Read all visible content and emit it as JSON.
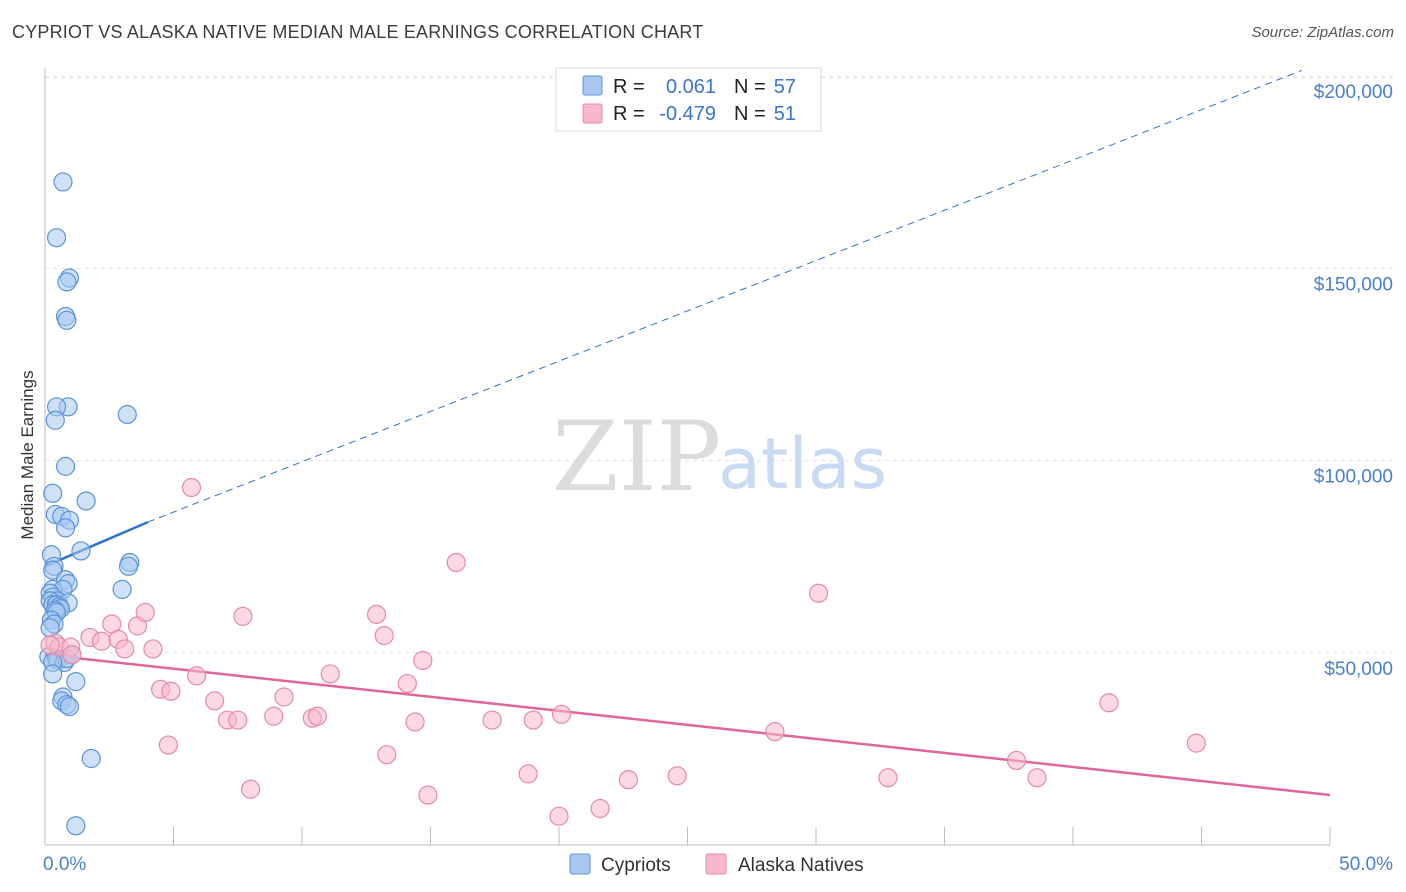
{
  "header": {
    "title": "CYPRIOT VS ALASKA NATIVE MEDIAN MALE EARNINGS CORRELATION CHART",
    "source": "Source: ZipAtlas.com"
  },
  "watermark": {
    "zip": "ZIP",
    "atlas": "atlas"
  },
  "colors": {
    "blue_fill": "#a8c8f0",
    "blue_stroke": "#5b93d8",
    "blue_line": "#2f72d0",
    "pink_fill": "#f7b8cc",
    "pink_stroke": "#e48aa8",
    "pink_line": "#e0669a",
    "grid": "#e3e3e3",
    "axis_text": "#4a7fd0"
  },
  "legend": {
    "rows": [
      {
        "r_label": "R =",
        "r_value": "0.061",
        "n_label": "N =",
        "n_value": "57"
      },
      {
        "r_label": "R =",
        "r_value": "-0.479",
        "n_label": "N =",
        "n_value": "51"
      }
    ]
  },
  "chart_data": {
    "type": "scatter",
    "title": "CYPRIOT VS ALASKA NATIVE MEDIAN MALE EARNINGS CORRELATION CHART",
    "xlabel": "",
    "ylabel": "Median Male Earnings",
    "xlim": [
      0,
      50
    ],
    "ylim": [
      0,
      205000
    ],
    "x_tick_labels": [
      "0.0%",
      "50.0%"
    ],
    "y_ticks": [
      {
        "value": 50000,
        "label": "$50,000"
      },
      {
        "value": 100000,
        "label": "$100,000"
      },
      {
        "value": 150000,
        "label": "$150,000"
      },
      {
        "value": 200000,
        "label": "$200,000"
      }
    ],
    "grid": true,
    "legend_position": "top-center",
    "series": [
      {
        "name": "Cypriots",
        "R": 0.061,
        "N": 57,
        "trend": {
          "x": [
            0,
            4
          ],
          "y": [
            72500,
            84000
          ],
          "dashed_extension_to": [
            48.9,
            201500
          ]
        },
        "points": [
          [
            0.7,
            172500
          ],
          [
            0.45,
            158000
          ],
          [
            0.95,
            147500
          ],
          [
            0.85,
            146500
          ],
          [
            0.8,
            137500
          ],
          [
            0.85,
            136500
          ],
          [
            0.9,
            114000
          ],
          [
            0.45,
            114000
          ],
          [
            0.4,
            110500
          ],
          [
            3.2,
            112000
          ],
          [
            0.8,
            98500
          ],
          [
            0.3,
            91500
          ],
          [
            1.6,
            89500
          ],
          [
            0.4,
            86000
          ],
          [
            0.65,
            85500
          ],
          [
            0.95,
            84500
          ],
          [
            0.8,
            82500
          ],
          [
            1.4,
            76500
          ],
          [
            0.25,
            75500
          ],
          [
            0.35,
            72500
          ],
          [
            0.3,
            71500
          ],
          [
            3.3,
            73500
          ],
          [
            3.25,
            72500
          ],
          [
            0.8,
            69000
          ],
          [
            0.9,
            68000
          ],
          [
            0.3,
            66500
          ],
          [
            0.7,
            66500
          ],
          [
            0.2,
            65500
          ],
          [
            3.0,
            66500
          ],
          [
            0.3,
            64500
          ],
          [
            0.5,
            63500
          ],
          [
            0.2,
            63500
          ],
          [
            0.3,
            62500
          ],
          [
            0.45,
            62500
          ],
          [
            0.9,
            63000
          ],
          [
            0.55,
            62000
          ],
          [
            0.6,
            61500
          ],
          [
            0.4,
            61000
          ],
          [
            0.45,
            60500
          ],
          [
            0.25,
            58500
          ],
          [
            0.35,
            57500
          ],
          [
            0.2,
            56500
          ],
          [
            0.15,
            49000
          ],
          [
            0.45,
            48500
          ],
          [
            0.5,
            48000
          ],
          [
            0.75,
            47500
          ],
          [
            0.85,
            48500
          ],
          [
            1.05,
            49500
          ],
          [
            0.3,
            47500
          ],
          [
            0.3,
            44500
          ],
          [
            1.2,
            42500
          ],
          [
            0.7,
            38500
          ],
          [
            0.65,
            37500
          ],
          [
            0.85,
            36500
          ],
          [
            0.95,
            36000
          ],
          [
            1.8,
            22500
          ],
          [
            1.2,
            5000
          ]
        ]
      },
      {
        "name": "Alaska Natives",
        "R": -0.479,
        "N": 51,
        "trend": {
          "x": [
            0,
            50
          ],
          "y": [
            49500,
            13000
          ]
        },
        "points": [
          [
            0.4,
            52500
          ],
          [
            0.55,
            51500
          ],
          [
            1.0,
            51500
          ],
          [
            1.05,
            49500
          ],
          [
            1.75,
            54000
          ],
          [
            2.2,
            53000
          ],
          [
            2.6,
            57500
          ],
          [
            2.85,
            53500
          ],
          [
            3.1,
            51000
          ],
          [
            3.6,
            57000
          ],
          [
            3.9,
            60500
          ],
          [
            4.2,
            51000
          ],
          [
            4.5,
            40500
          ],
          [
            4.9,
            40000
          ],
          [
            5.7,
            93000
          ],
          [
            5.9,
            44000
          ],
          [
            6.6,
            37500
          ],
          [
            7.1,
            32500
          ],
          [
            7.5,
            32500
          ],
          [
            7.7,
            59500
          ],
          [
            8.9,
            33500
          ],
          [
            9.3,
            38500
          ],
          [
            4.8,
            26000
          ],
          [
            8.0,
            14500
          ],
          [
            10.4,
            33000
          ],
          [
            10.6,
            33500
          ],
          [
            11.1,
            44500
          ],
          [
            12.9,
            60000
          ],
          [
            13.2,
            54500
          ],
          [
            13.3,
            23500
          ],
          [
            14.1,
            42000
          ],
          [
            14.4,
            32000
          ],
          [
            14.7,
            48000
          ],
          [
            14.9,
            13000
          ],
          [
            16.0,
            73500
          ],
          [
            17.4,
            32500
          ],
          [
            18.8,
            18500
          ],
          [
            19.0,
            32500
          ],
          [
            20.1,
            34000
          ],
          [
            20.0,
            7500
          ],
          [
            21.6,
            9500
          ],
          [
            22.7,
            17000
          ],
          [
            24.6,
            18000
          ],
          [
            28.4,
            29500
          ],
          [
            30.1,
            65500
          ],
          [
            32.8,
            17500
          ],
          [
            37.8,
            22000
          ],
          [
            38.6,
            17500
          ],
          [
            41.4,
            37000
          ],
          [
            44.8,
            26500
          ],
          [
            0.2,
            52000
          ]
        ]
      }
    ]
  },
  "bottom_legend": {
    "items": [
      {
        "label": "Cypriots"
      },
      {
        "label": "Alaska Natives"
      }
    ]
  }
}
